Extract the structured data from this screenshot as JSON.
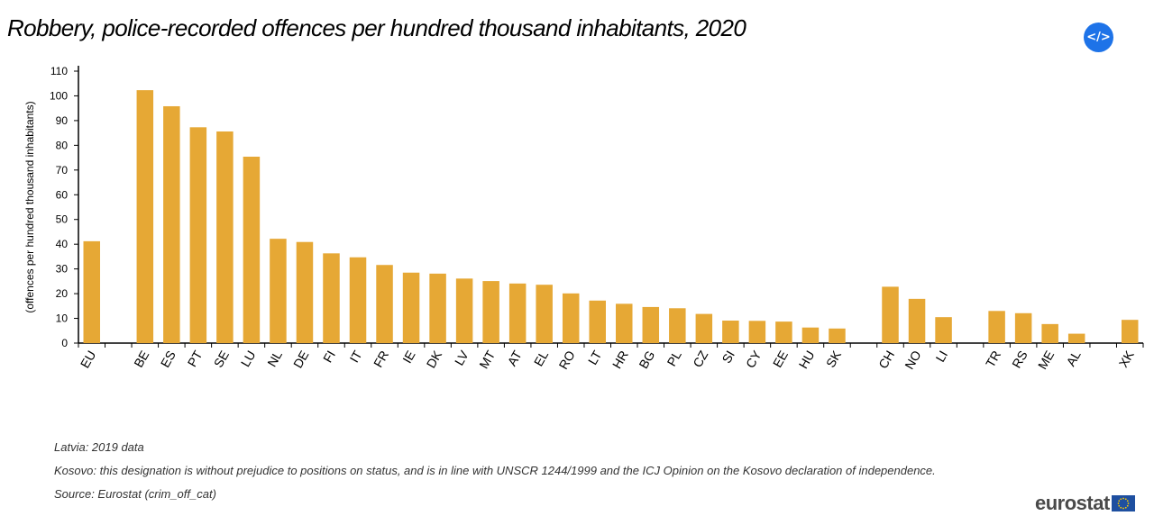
{
  "header": {
    "title": "Robbery, police-recorded offences per hundred thousand inhabitants, 2020",
    "embed_label": "</>"
  },
  "chart_data": {
    "type": "bar",
    "title": "Robbery, police-recorded offences per hundred thousand inhabitants, 2020",
    "xlabel": "",
    "ylabel": "(offences per hundred thousand inhabitants)",
    "ylim": [
      0,
      110
    ],
    "yticks": [
      0,
      10,
      20,
      30,
      40,
      50,
      60,
      70,
      80,
      90,
      100,
      110
    ],
    "bar_color": "#e6a835",
    "categories": [
      "EU",
      "",
      "BE",
      "ES",
      "PT",
      "SE",
      "LU",
      "NL",
      "DE",
      "FI",
      "IT",
      "FR",
      "IE",
      "DK",
      "LV",
      "MT",
      "AT",
      "EL",
      "RO",
      "LT",
      "HR",
      "BG",
      "PL",
      "CZ",
      "SI",
      "CY",
      "EE",
      "HU",
      "SK",
      "",
      "CH",
      "NO",
      "LI",
      "",
      "TR",
      "RS",
      "ME",
      "AL",
      "",
      "XK"
    ],
    "values": [
      41.2,
      null,
      102.3,
      95.8,
      87.3,
      85.6,
      75.4,
      42.2,
      40.9,
      36.3,
      34.7,
      31.6,
      28.5,
      28.1,
      26.1,
      25.1,
      24.1,
      23.6,
      20.1,
      17.2,
      15.9,
      14.6,
      14.1,
      11.8,
      9.1,
      9.0,
      8.7,
      6.3,
      5.9,
      null,
      22.8,
      17.9,
      10.5,
      null,
      13.0,
      12.1,
      7.7,
      3.8,
      null,
      9.4
    ]
  },
  "notes": {
    "latvia": "Latvia: 2019 data",
    "kosovo": "Kosovo: this designation is without prejudice to positions on status, and is in line with UNSCR 1244/1999 and the ICJ Opinion on the Kosovo declaration of independence.",
    "source": "Source: Eurostat (crim_off_cat)"
  },
  "branding": {
    "logo_text": "eurostat",
    "flag_color": "#1e4fa0",
    "star_color": "#ffcc00"
  }
}
